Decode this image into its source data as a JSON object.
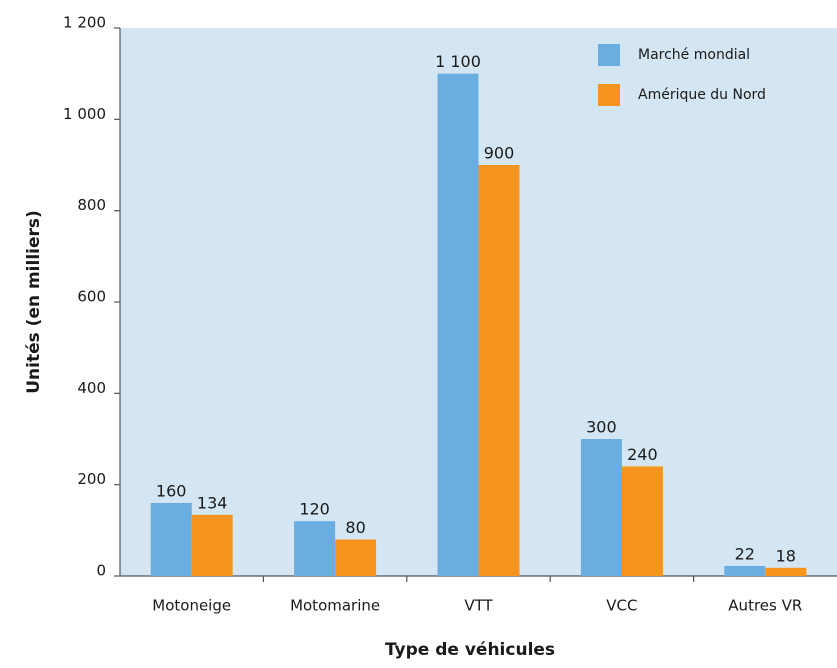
{
  "chart_data": {
    "type": "bar",
    "x_label": "Type de véhicules",
    "y_label": "Unités (en milliers)",
    "categories": [
      "Motoneige",
      "Motomarine",
      "VTT",
      "VCC",
      "Autres VR"
    ],
    "series": [
      {
        "name": "Marché mondial",
        "color": "#6aade0",
        "values": [
          160,
          120,
          1100,
          300,
          22
        ],
        "value_labels": [
          "160",
          "120",
          "1 100",
          "300",
          "22"
        ]
      },
      {
        "name": "Amérique du Nord",
        "color": "#f7941d",
        "values": [
          134,
          80,
          900,
          240,
          18
        ],
        "value_labels": [
          "134",
          "80",
          "900",
          "240",
          "18"
        ]
      }
    ],
    "ylim": [
      0,
      1200
    ],
    "yticks": [
      0,
      200,
      400,
      600,
      800,
      {
        "value": 1000,
        "label": "1 000"
      },
      {
        "value": 1200,
        "label": "1 200"
      }
    ],
    "grid": false,
    "legend": "top-right",
    "plot_background": "#d4e6f4"
  }
}
